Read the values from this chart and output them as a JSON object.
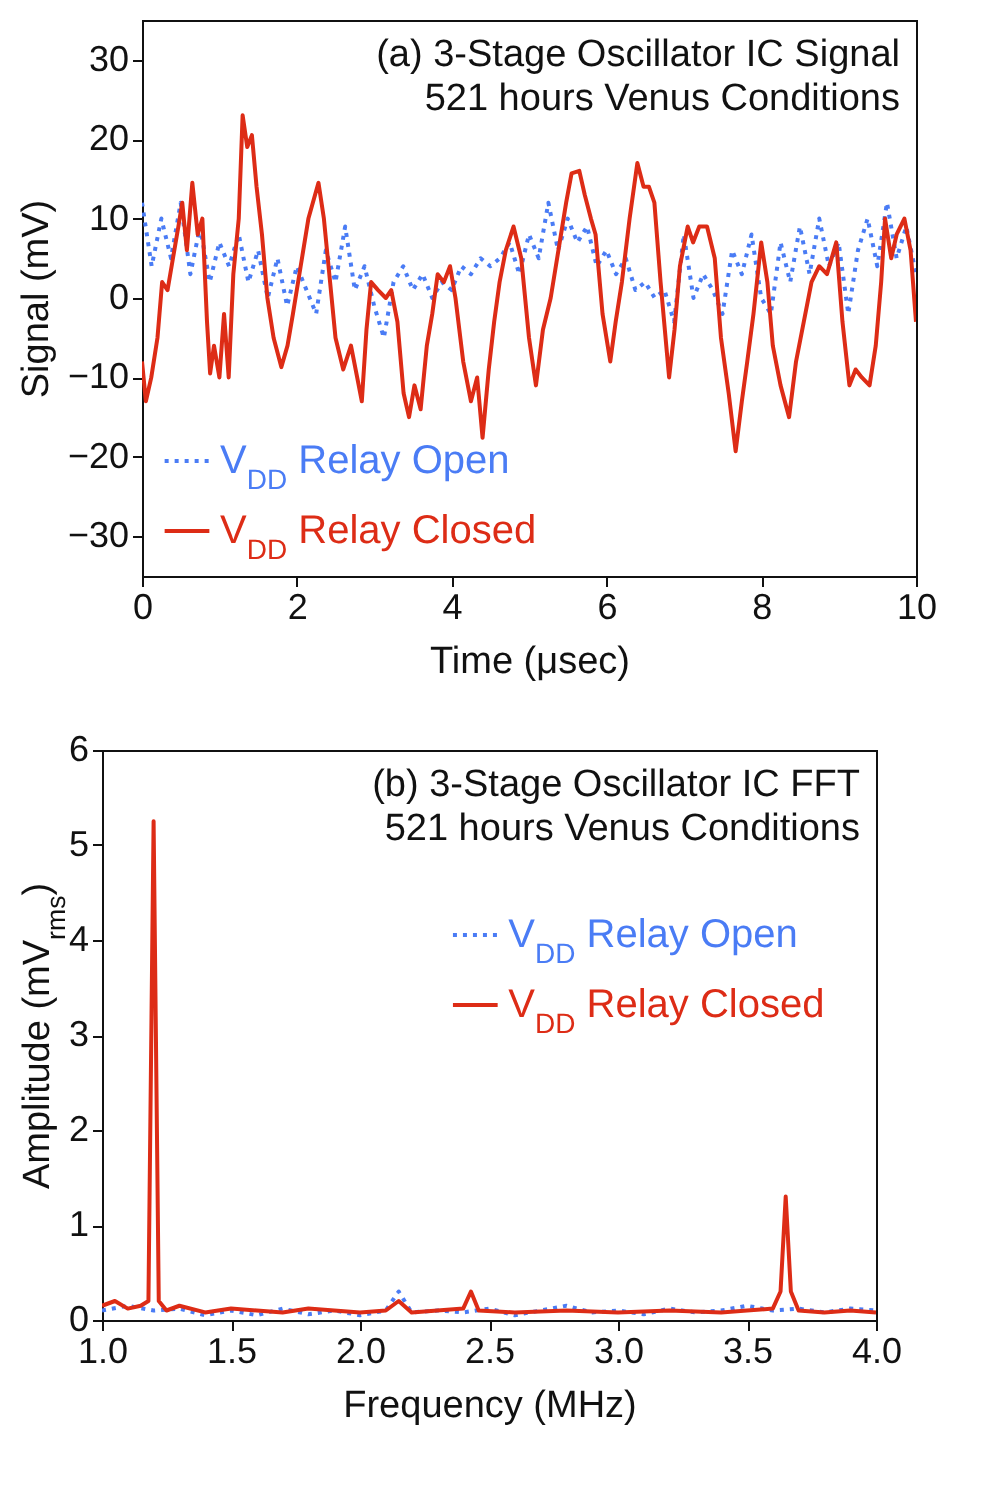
{
  "chart_data": [
    {
      "type": "line",
      "annotations": [
        "(a) 3-Stage Oscillator IC Signal",
        "521 hours Venus Conditions"
      ],
      "xlabel": "Time (μsec)",
      "ylabel": "Signal (mV)",
      "xlim": [
        0,
        10
      ],
      "ylim": [
        -35,
        35
      ],
      "xticks": [
        0,
        2,
        4,
        6,
        8,
        10
      ],
      "yticks": [
        -30,
        -20,
        -10,
        0,
        10,
        20,
        30
      ],
      "legend": "bottom left",
      "marker": "none",
      "series": [
        {
          "name": "V$_{DD}$ Relay Open",
          "color": "#4a7cf5",
          "line_style": "dotted",
          "x": [
            0,
            0.125,
            0.25,
            0.375,
            0.5,
            0.625,
            0.75,
            0.875,
            1,
            1.125,
            1.25,
            1.375,
            1.5,
            1.625,
            1.75,
            1.875,
            2,
            2.125,
            2.25,
            2.375,
            2.5,
            2.625,
            2.75,
            2.875,
            3,
            3.125,
            3.25,
            3.375,
            3.5,
            3.625,
            3.75,
            3.875,
            4,
            4.125,
            4.25,
            4.375,
            4.5,
            4.625,
            4.75,
            4.875,
            5,
            5.125,
            5.25,
            5.375,
            5.5,
            5.625,
            5.75,
            5.875,
            6,
            6.125,
            6.25,
            6.375,
            6.5,
            6.625,
            6.75,
            6.875,
            7,
            7.125,
            7.25,
            7.375,
            7.5,
            7.625,
            7.75,
            7.875,
            8,
            8.125,
            8.25,
            8.375,
            8.5,
            8.625,
            8.75,
            8.875,
            9,
            9.125,
            9.25,
            9.375,
            9.5,
            9.625,
            9.75,
            9.875,
            10
          ],
          "values": [
            12,
            4,
            10,
            5,
            12,
            3,
            9,
            2,
            7,
            4,
            8,
            2,
            6,
            0,
            5,
            -1,
            4,
            1,
            -2,
            6,
            2,
            9,
            1,
            4,
            -1,
            -5,
            2,
            4,
            1,
            3,
            0,
            2,
            1,
            4,
            3,
            5,
            4,
            5,
            7,
            3,
            8,
            5,
            12,
            6,
            10,
            7,
            9,
            4,
            6,
            3,
            5,
            1,
            2,
            0,
            1,
            -3,
            8,
            0,
            3,
            1,
            -2,
            6,
            3,
            8,
            0,
            -2,
            7,
            2,
            9,
            3,
            10,
            4,
            7,
            -2,
            6,
            10,
            4,
            12,
            5,
            9,
            3
          ]
        },
        {
          "name": "V$_{DD}$ Relay Closed",
          "color": "#dd2c16",
          "line_style": "solid",
          "x": [
            0,
            0.05,
            0.12,
            0.2,
            0.26,
            0.33,
            0.4,
            0.47,
            0.52,
            0.58,
            0.65,
            0.72,
            0.78,
            0.84,
            0.88,
            0.93,
            1,
            1.06,
            1.12,
            1.18,
            1.25,
            1.3,
            1.36,
            1.42,
            1.48,
            1.55,
            1.62,
            1.7,
            1.8,
            1.88,
            1.95,
            2.05,
            2.15,
            2.28,
            2.35,
            2.42,
            2.5,
            2.6,
            2.7,
            2.78,
            2.84,
            2.9,
            2.96,
            3.05,
            3.15,
            3.22,
            3.3,
            3.38,
            3.45,
            3.52,
            3.6,
            3.68,
            3.75,
            3.82,
            3.9,
            3.98,
            4.05,
            4.15,
            4.25,
            4.33,
            4.4,
            4.48,
            4.55,
            4.62,
            4.7,
            4.8,
            4.9,
            5,
            5.09,
            5.18,
            5.28,
            5.38,
            5.48,
            5.55,
            5.65,
            5.72,
            5.8,
            5.86,
            5.95,
            6.05,
            6.12,
            6.2,
            6.3,
            6.4,
            6.48,
            6.55,
            6.62,
            6.7,
            6.81,
            6.88,
            6.95,
            7.05,
            7.12,
            7.2,
            7.3,
            7.4,
            7.48,
            7.58,
            7.67,
            7.75,
            7.82,
            7.9,
            8,
            8.08,
            8.15,
            8.25,
            8.36,
            8.45,
            8.55,
            8.65,
            8.75,
            8.85,
            8.97,
            9.05,
            9.14,
            9.22,
            9.3,
            9.4,
            9.48,
            9.55,
            9.6,
            9.68,
            9.75,
            9.85,
            9.93,
            10
          ],
          "values": [
            -8,
            -13,
            -10,
            -5,
            2,
            1,
            5,
            9,
            12,
            6,
            14.5,
            8,
            10,
            -3,
            -9.5,
            -6,
            -10,
            -2,
            -10,
            3,
            10,
            23,
            19,
            20.5,
            14,
            8,
            0,
            -5,
            -8.7,
            -6,
            -2,
            4,
            10,
            14.5,
            10,
            3,
            -5,
            -9,
            -6,
            -10,
            -13,
            -4,
            2,
            1,
            0,
            1,
            -3,
            -12,
            -15,
            -11,
            -14,
            -6,
            -2,
            3,
            2,
            4,
            0,
            -8,
            -13,
            -10,
            -17.6,
            -9,
            -3,
            2,
            6,
            9,
            5,
            -5,
            -11,
            -4,
            0,
            6,
            12,
            15.7,
            16,
            13,
            10,
            8,
            -2,
            -8,
            -3,
            2,
            10,
            17,
            14,
            14,
            12,
            2,
            -10,
            -4,
            4,
            9,
            7,
            9,
            9,
            5,
            -5,
            -12,
            -19.3,
            -13,
            -8,
            -2,
            7,
            2,
            -6,
            -11,
            -15,
            -8,
            -3,
            2,
            4,
            3,
            7,
            -3,
            -11,
            -9,
            -10,
            -11,
            -6,
            2,
            10,
            5,
            8,
            10,
            6,
            -3
          ]
        }
      ]
    },
    {
      "type": "line",
      "annotations": [
        "(b) 3-Stage Oscillator IC FFT",
        "521 hours Venus Conditions"
      ],
      "xlabel": "Frequency (MHz)",
      "ylabel": "Amplitude (mV$_{rms}$)",
      "xlim": [
        1,
        4
      ],
      "ylim": [
        0,
        6
      ],
      "xticks": [
        {
          "value": 1,
          "label": "1.0"
        },
        1.5,
        {
          "value": 2,
          "label": "2.0"
        },
        2.5,
        {
          "value": 3,
          "label": "3.0"
        },
        3.5,
        {
          "value": 4,
          "label": "4.0"
        }
      ],
      "yticks": [
        0,
        1,
        2,
        3,
        4,
        5,
        6
      ],
      "legend": "top right",
      "marker": "none",
      "series": [
        {
          "name": "V$_{DD}$ Relay Open",
          "color": "#4a7cf5",
          "line_style": "dotted",
          "x": [
            1,
            1.1,
            1.2,
            1.3,
            1.4,
            1.5,
            1.6,
            1.7,
            1.8,
            1.9,
            2,
            2.1,
            2.15,
            2.2,
            2.3,
            2.4,
            2.5,
            2.6,
            2.7,
            2.8,
            2.9,
            3,
            3.1,
            3.2,
            3.3,
            3.4,
            3.5,
            3.6,
            3.7,
            3.8,
            3.9,
            4
          ],
          "values": [
            0.1,
            0.15,
            0.1,
            0.12,
            0.05,
            0.1,
            0.05,
            0.12,
            0.06,
            0.1,
            0.05,
            0.1,
            0.3,
            0.08,
            0.1,
            0.08,
            0.12,
            0.05,
            0.1,
            0.15,
            0.08,
            0.1,
            0.06,
            0.12,
            0.08,
            0.1,
            0.15,
            0.1,
            0.12,
            0.08,
            0.12,
            0.1
          ]
        },
        {
          "name": "V$_{DD}$ Relay Closed",
          "color": "#dd2c16",
          "line_style": "solid",
          "x": [
            1,
            1.05,
            1.1,
            1.15,
            1.18,
            1.2,
            1.22,
            1.25,
            1.3,
            1.4,
            1.5,
            1.6,
            1.7,
            1.8,
            1.9,
            2,
            2.1,
            2.15,
            2.2,
            2.3,
            2.4,
            2.43,
            2.46,
            2.6,
            2.8,
            3,
            3.2,
            3.4,
            3.5,
            3.6,
            3.63,
            3.65,
            3.67,
            3.7,
            3.8,
            3.9,
            4
          ],
          "values": [
            0.15,
            0.2,
            0.12,
            0.15,
            0.2,
            5.25,
            0.2,
            0.1,
            0.15,
            0.08,
            0.12,
            0.1,
            0.08,
            0.12,
            0.1,
            0.08,
            0.1,
            0.2,
            0.08,
            0.1,
            0.12,
            0.3,
            0.1,
            0.08,
            0.1,
            0.08,
            0.1,
            0.08,
            0.1,
            0.12,
            0.3,
            1.3,
            0.3,
            0.1,
            0.08,
            0.1,
            0.08
          ]
        }
      ]
    }
  ]
}
